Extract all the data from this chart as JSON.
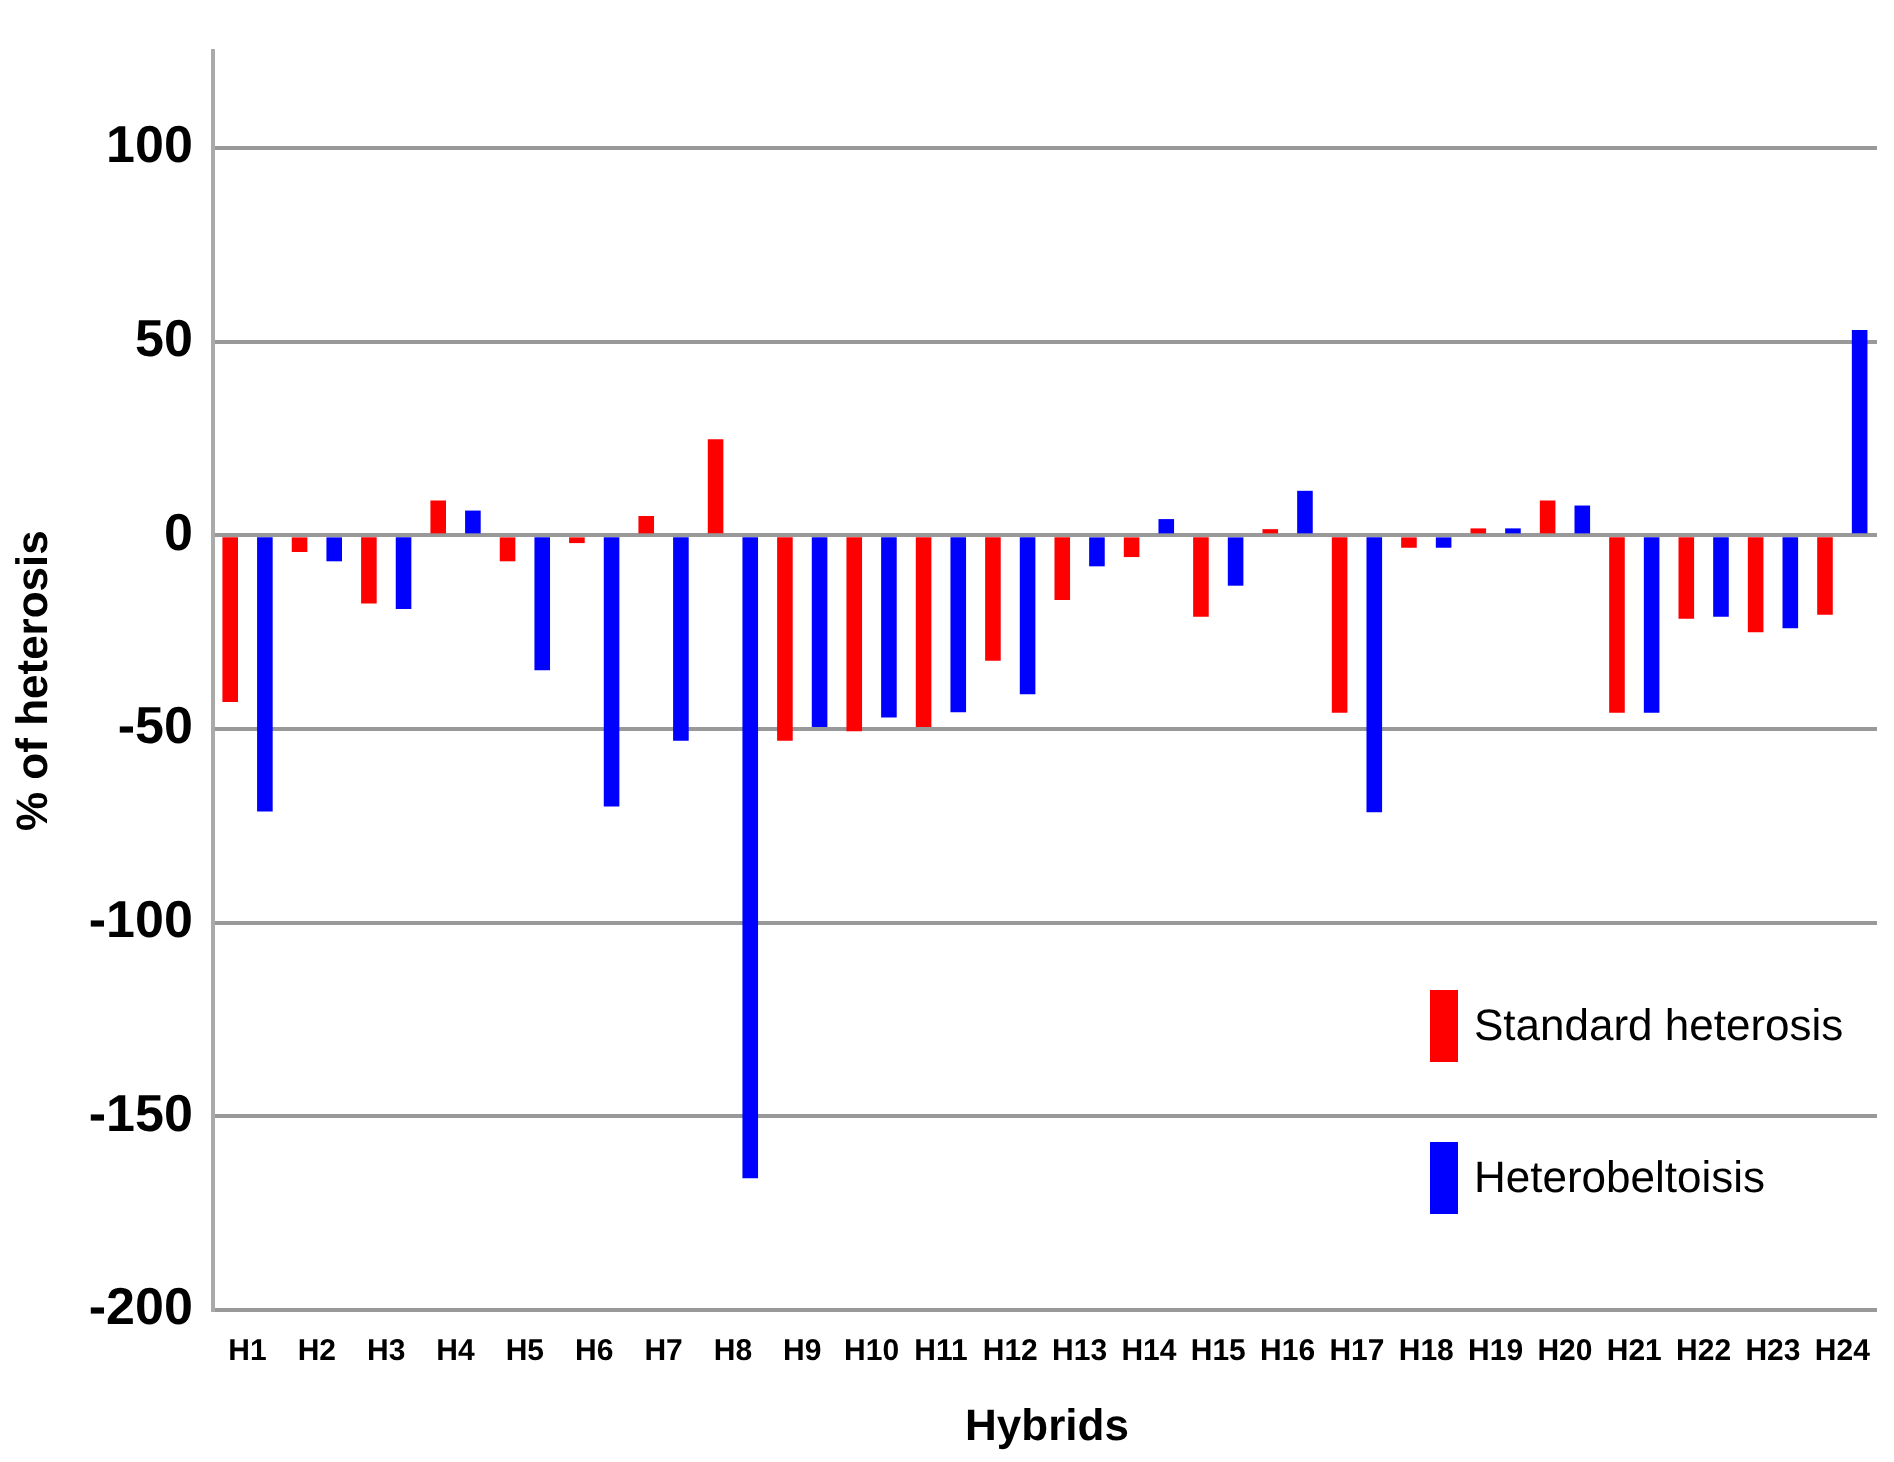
{
  "chart_data": {
    "type": "bar",
    "xlabel": "Hybrids",
    "ylabel": "% of heterosis",
    "categories": [
      "H1",
      "H2",
      "H3",
      "H4",
      "H5",
      "H6",
      "H7",
      "H8",
      "H9",
      "H10",
      "H11",
      "H12",
      "H13",
      "H14",
      "H15",
      "H16",
      "H17",
      "H18",
      "H19",
      "H20",
      "H21",
      "H22",
      "H23",
      "H24"
    ],
    "series": [
      {
        "name": "Standard heterosis",
        "color": "#ff0000",
        "values": [
          -43,
          -4.3,
          -17.6,
          9,
          -6.7,
          -2,
          5,
          24.8,
          -53,
          -50.6,
          -49.5,
          -32.4,
          -16.7,
          -5.6,
          -21,
          1.6,
          -45.8,
          -3.2,
          1.8,
          9,
          -45.8,
          -21.5,
          -25,
          -20.5
        ]
      },
      {
        "name": "Heterobeltoisis",
        "color": "#0000ff",
        "values": [
          -71.3,
          -6.7,
          -19,
          6.4,
          -34.8,
          -70,
          -53,
          -166,
          -49.5,
          -47,
          -45.7,
          -41,
          -8,
          4.2,
          -13,
          11.5,
          -71.5,
          -3.2,
          1.8,
          7.7,
          -45.8,
          -21,
          -24,
          53
        ]
      }
    ],
    "ylim": [
      -200,
      125
    ],
    "yticks": [
      -200,
      -150,
      -100,
      -50,
      0,
      50,
      100
    ],
    "grid": "y",
    "legend": "bottom right"
  }
}
